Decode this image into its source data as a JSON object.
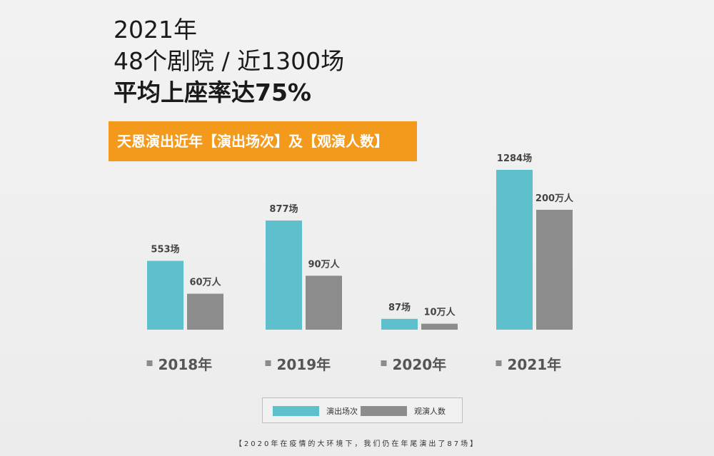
{
  "headline": {
    "line1": "2021年",
    "line2": "48个剧院 / 近1300场",
    "line3": "平均上座率达75%"
  },
  "banner": {
    "text": "天恩演出近年【演出场次】及【观演人数】"
  },
  "colors": {
    "performances": "#5ec0cd",
    "audience": "#8c8c8c",
    "banner": "#f39a1c"
  },
  "chart_data": {
    "type": "bar",
    "title": "天恩演出近年【演出场次】及【观演人数】",
    "categories": [
      "2018年",
      "2019年",
      "2020年",
      "2021年"
    ],
    "series": [
      {
        "name": "演出场次",
        "values": [
          553,
          877,
          87,
          1284
        ],
        "labels": [
          "553场",
          "877场",
          "87场",
          "1284场"
        ]
      },
      {
        "name": "观演人数",
        "values": [
          60,
          90,
          10,
          200
        ],
        "labels": [
          "60万人",
          "90万人",
          "10万人",
          "200万人"
        ]
      }
    ],
    "legend": "bottom-center",
    "grid": false
  },
  "legend": {
    "items": [
      "演出场次",
      "观演人数"
    ]
  },
  "footer": {
    "text": "【2020年在疫情的大环境下，我们仍在年尾演出了87场】"
  }
}
